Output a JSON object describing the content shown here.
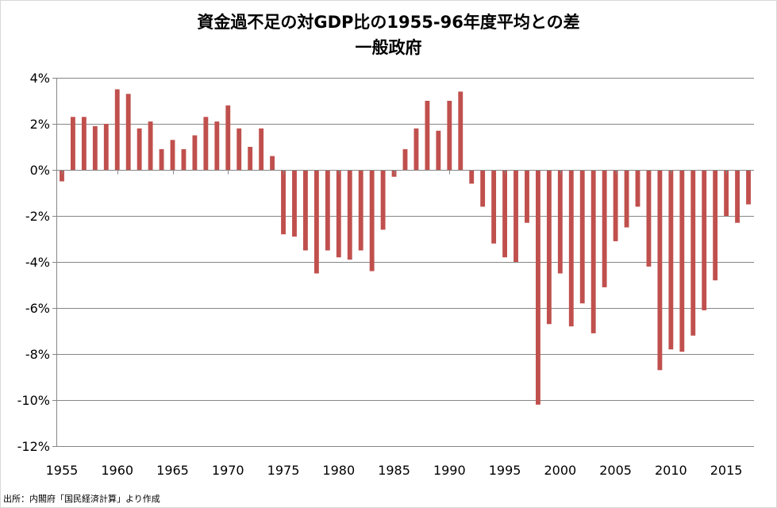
{
  "chart_data": {
    "type": "bar",
    "title": "資金過不足の対GDP比の1955-96年度平均との差",
    "subtitle": "一般政府",
    "xlabel": "",
    "ylabel": "",
    "ylim": [
      -12,
      4
    ],
    "y_ticks": [
      4,
      2,
      0,
      -2,
      -4,
      -6,
      -8,
      -10,
      -12
    ],
    "y_tick_labels": [
      "4%",
      "2%",
      "0%",
      "-2%",
      "-4%",
      "-6%",
      "-8%",
      "-10%",
      "-12%"
    ],
    "x_tick_labels": [
      "1955",
      "1960",
      "1965",
      "1970",
      "1975",
      "1980",
      "1985",
      "1990",
      "1995",
      "2000",
      "2005",
      "2010",
      "2015"
    ],
    "x_tick_years": [
      1955,
      1960,
      1965,
      1970,
      1975,
      1980,
      1985,
      1990,
      1995,
      2000,
      2005,
      2010,
      2015
    ],
    "grid": "horizontal",
    "bar_color": "#c0504d",
    "categories": [
      1955,
      1956,
      1957,
      1958,
      1959,
      1960,
      1961,
      1962,
      1963,
      1964,
      1965,
      1966,
      1967,
      1968,
      1969,
      1970,
      1971,
      1972,
      1973,
      1974,
      1975,
      1976,
      1977,
      1978,
      1979,
      1980,
      1981,
      1982,
      1983,
      1984,
      1985,
      1986,
      1987,
      1988,
      1989,
      1990,
      1991,
      1992,
      1993,
      1994,
      1995,
      1996,
      1997,
      1998,
      1999,
      2000,
      2001,
      2002,
      2003,
      2004,
      2005,
      2006,
      2007,
      2008,
      2009,
      2010,
      2011,
      2012,
      2013,
      2014,
      2015,
      2016,
      2017
    ],
    "values": [
      -0.5,
      2.3,
      2.3,
      1.9,
      2.0,
      3.5,
      3.3,
      1.8,
      2.1,
      0.9,
      1.3,
      0.9,
      1.5,
      2.3,
      2.1,
      2.8,
      1.8,
      1.0,
      1.8,
      0.6,
      -2.8,
      -2.9,
      -3.5,
      -4.5,
      -3.5,
      -3.8,
      -3.9,
      -3.5,
      -4.4,
      -2.6,
      -0.3,
      0.9,
      1.8,
      3.0,
      1.7,
      3.0,
      3.4,
      -0.6,
      -1.6,
      -3.2,
      -3.8,
      -4.0,
      -2.3,
      -10.2,
      -6.7,
      -4.5,
      -6.8,
      -5.8,
      -7.1,
      -5.1,
      -3.1,
      -2.5,
      -1.6,
      -4.2,
      -8.7,
      -7.8,
      -7.9,
      -7.2,
      -6.1,
      -4.8,
      -2.0,
      -2.3,
      -1.5
    ]
  },
  "source_note": "出所：内閣府「国民経済計算」より作成"
}
